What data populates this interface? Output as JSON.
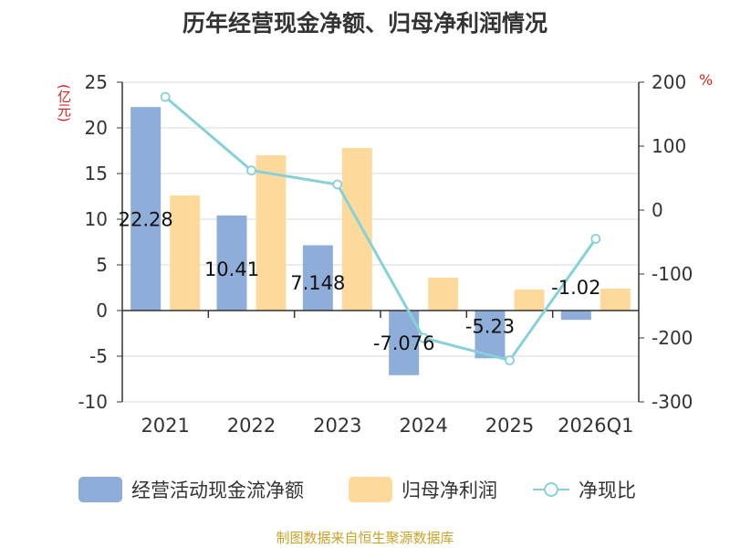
{
  "chart_data": {
    "type": "bar",
    "title": "历年经营现金净额、归母净利润情况",
    "categories": [
      "2021",
      "2022",
      "2023",
      "2024",
      "2025",
      "2026Q1"
    ],
    "series": [
      {
        "name": "经营活动现金流净额",
        "type": "bar",
        "axis": "left",
        "values": [
          22.28,
          10.41,
          7.148,
          -7.076,
          -5.23,
          -1.02
        ],
        "labels": [
          "22.28",
          "10.41",
          "7.148",
          "-7.076",
          "-5.23",
          "-1.02"
        ]
      },
      {
        "name": "归母净利润",
        "type": "bar",
        "axis": "left",
        "values": [
          12.6,
          17.0,
          17.8,
          3.6,
          2.3,
          2.4
        ]
      },
      {
        "name": "净现比",
        "type": "line",
        "axis": "right",
        "values": [
          177,
          62,
          40,
          -200,
          -235,
          -45
        ]
      }
    ],
    "left_axis": {
      "unit": "(亿元)",
      "min": -10,
      "max": 25,
      "ticks": [
        -10,
        -5,
        0,
        5,
        10,
        15,
        20,
        25
      ]
    },
    "right_axis": {
      "unit": "%",
      "min": -300,
      "max": 200,
      "ticks": [
        -300,
        -200,
        -100,
        0,
        100,
        200
      ]
    },
    "colors": {
      "cash": "#8eadd9",
      "profit": "#fdd99b",
      "ratio": "#86d1d8",
      "axis": "#333333",
      "grid": "#d8d8d8"
    },
    "legend": [
      "经营活动现金流净额",
      "归母净利润",
      "净现比"
    ],
    "legend_position": "bottom"
  },
  "footer": "制图数据来自恒生聚源数据库"
}
